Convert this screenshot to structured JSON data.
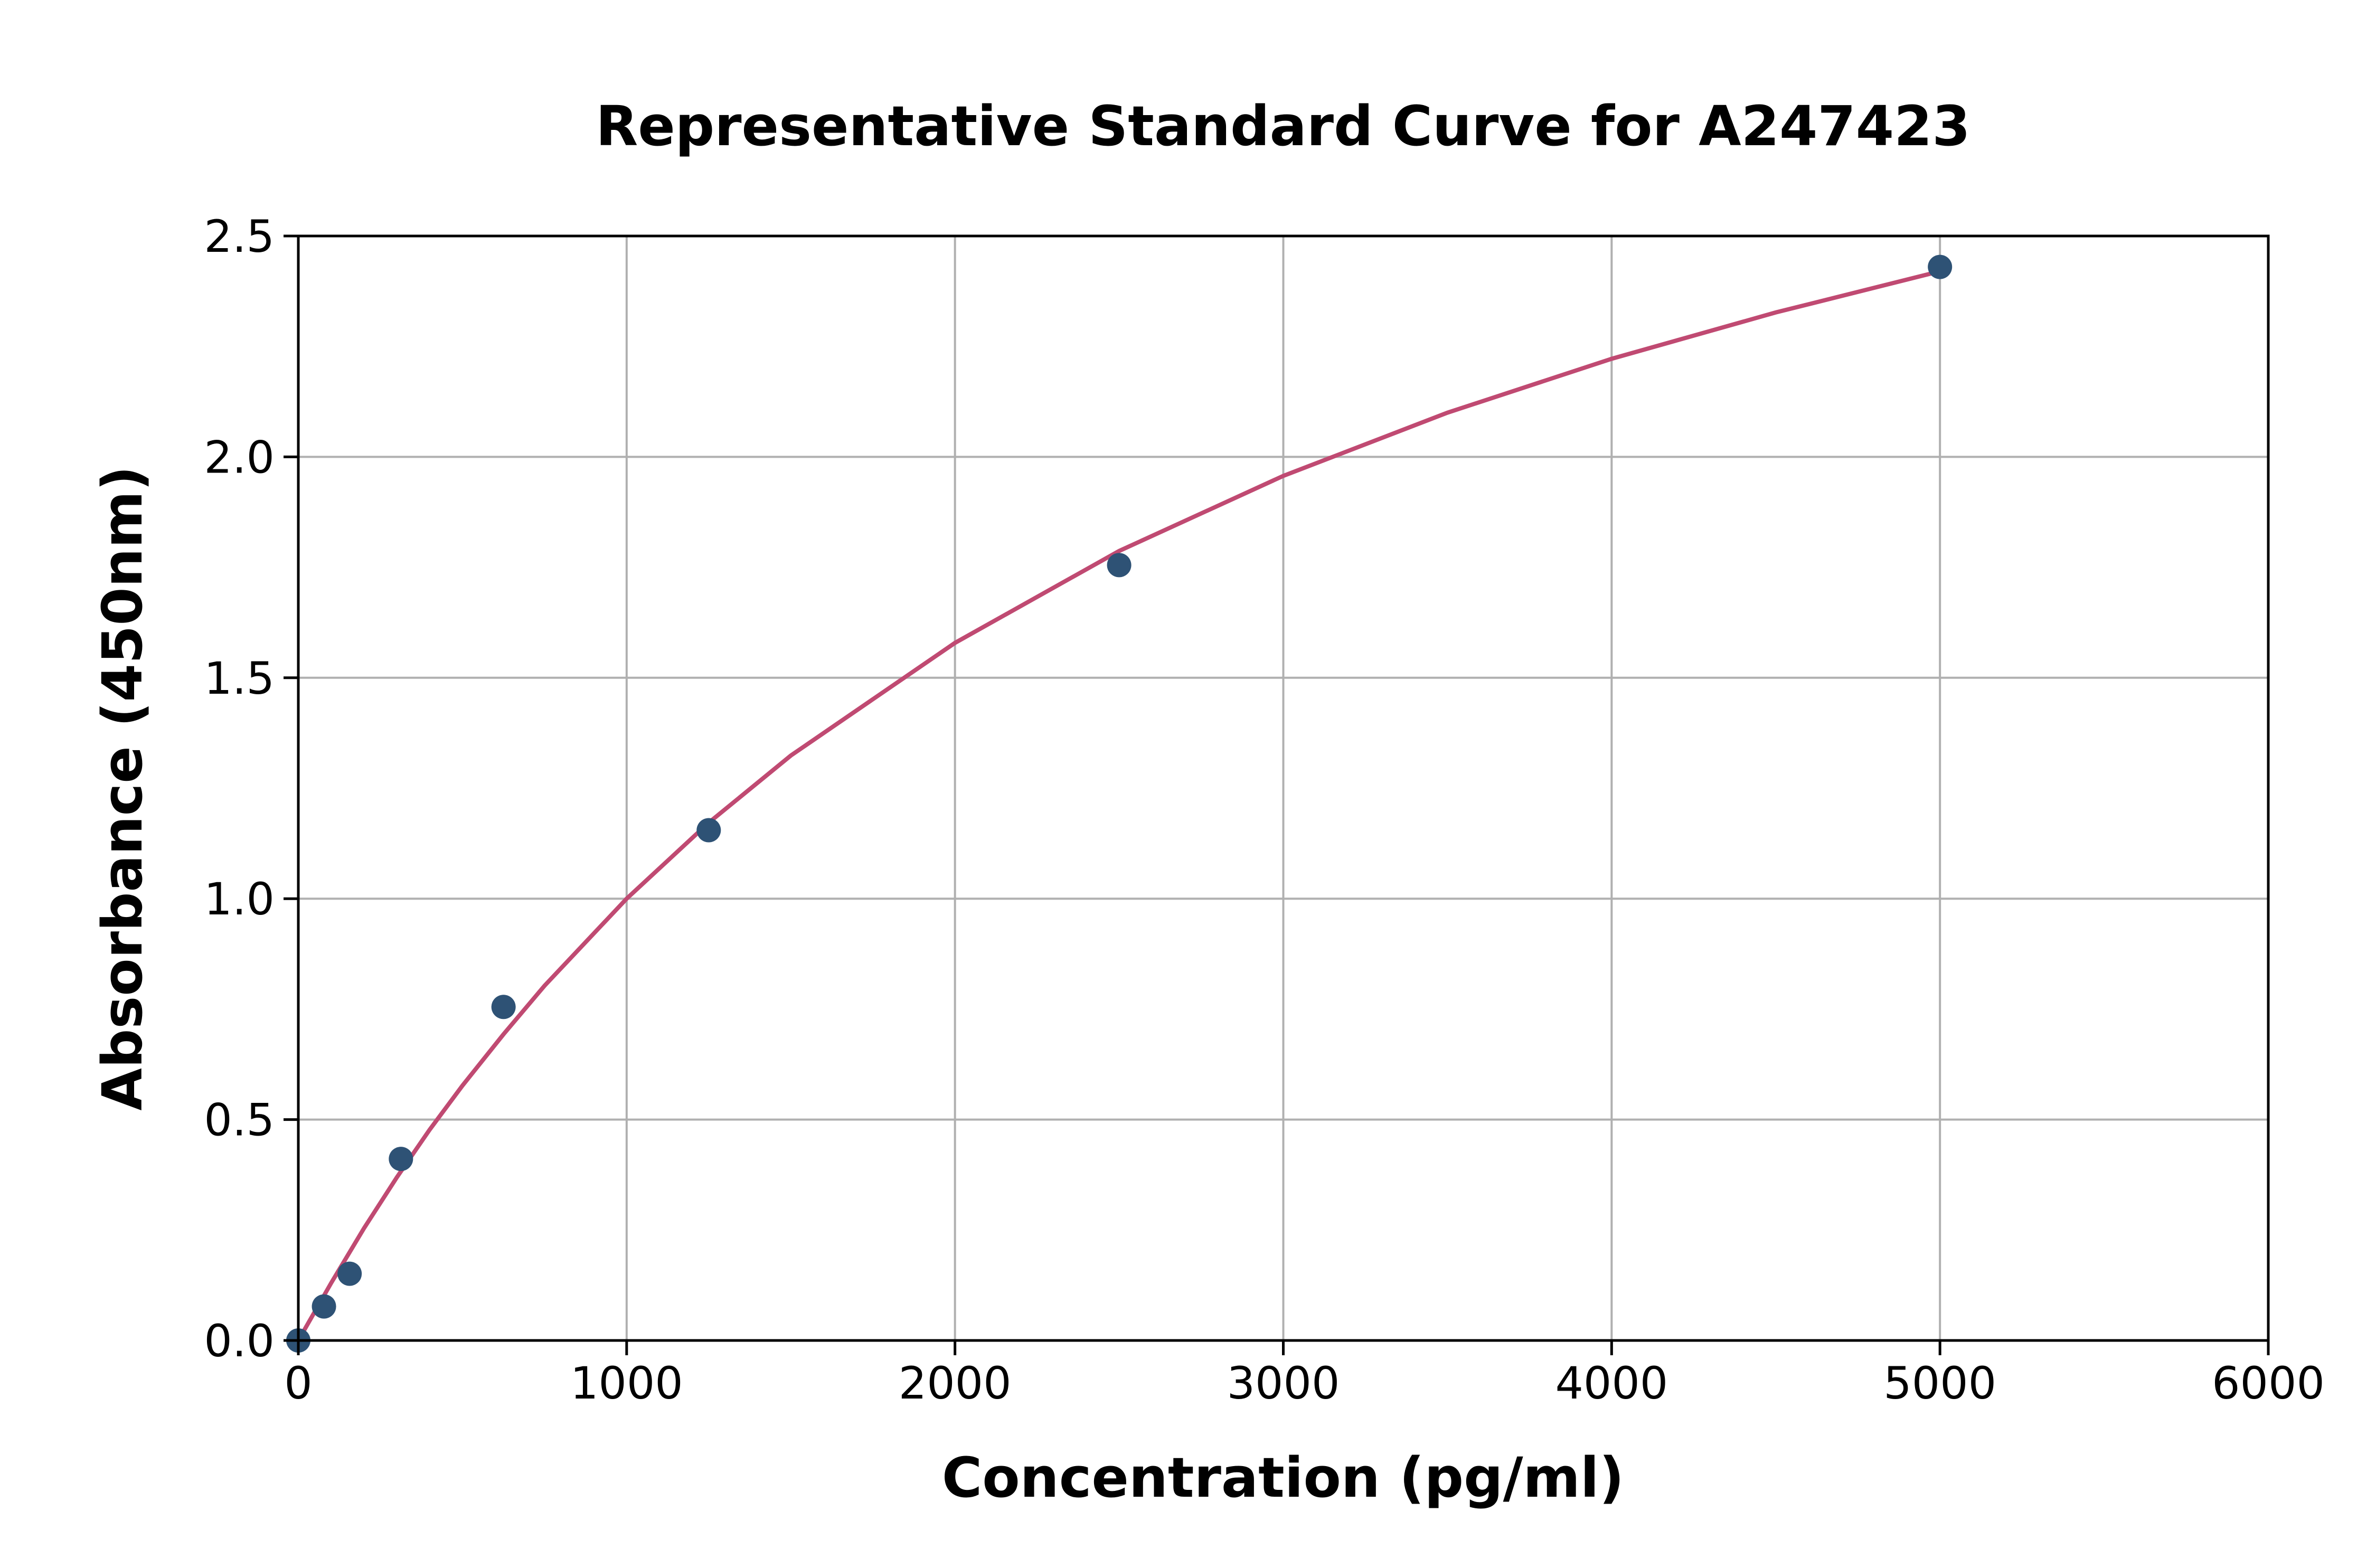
{
  "chart_data": {
    "type": "scatter",
    "title": "Representative Standard Curve for A247423",
    "xlabel": "Concentration (pg/ml)",
    "ylabel": "Absorbance (450nm)",
    "xlim": [
      0,
      6000
    ],
    "ylim": [
      0,
      2.5
    ],
    "xticks": [
      "0",
      "1000",
      "2000",
      "3000",
      "4000",
      "5000",
      "6000"
    ],
    "yticks": [
      "0.0",
      "0.5",
      "1.0",
      "1.5",
      "2.0",
      "2.5"
    ],
    "grid": true,
    "points": {
      "x": [
        0,
        78.125,
        156.25,
        312.5,
        625,
        1250,
        2500,
        5000
      ],
      "y": [
        0.0,
        0.077,
        0.151,
        0.411,
        0.755,
        1.155,
        1.755,
        2.43
      ]
    },
    "fit_curve": {
      "x": [
        0,
        100,
        200,
        300,
        400,
        500,
        625,
        750,
        1000,
        1250,
        1500,
        2000,
        2500,
        3000,
        3500,
        4000,
        4500,
        5000
      ],
      "y": [
        0.0,
        0.13,
        0.254,
        0.369,
        0.477,
        0.577,
        0.693,
        0.803,
        1.0,
        1.172,
        1.324,
        1.579,
        1.787,
        1.957,
        2.1,
        2.222,
        2.327,
        2.42
      ]
    },
    "colors": {
      "points": "#2e5275",
      "curve": "#c04a72",
      "grid": "#b0b0b0"
    }
  }
}
